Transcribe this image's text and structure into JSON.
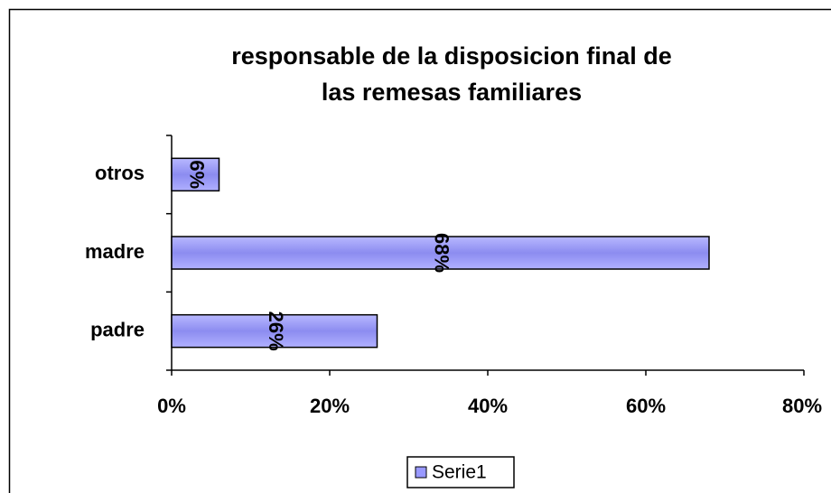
{
  "chart_data": {
    "type": "barh",
    "title": [
      "responsable de la disposicion final de",
      "las remesas familiares"
    ],
    "categories": [
      "padre",
      "madre",
      "otros"
    ],
    "series": [
      {
        "name": "Serie1",
        "color": "#9999ff",
        "values": [
          26,
          68,
          6
        ],
        "value_labels": [
          "26%",
          "68%",
          "6%"
        ]
      }
    ],
    "xlim": [
      0,
      80
    ],
    "xticks": [
      {
        "value": 0,
        "label": "0%"
      },
      {
        "value": 20,
        "label": "20%"
      },
      {
        "value": 40,
        "label": "40%"
      },
      {
        "value": 60,
        "label": "60%"
      },
      {
        "value": 80,
        "label": "80%"
      }
    ],
    "legend": "bottom"
  }
}
